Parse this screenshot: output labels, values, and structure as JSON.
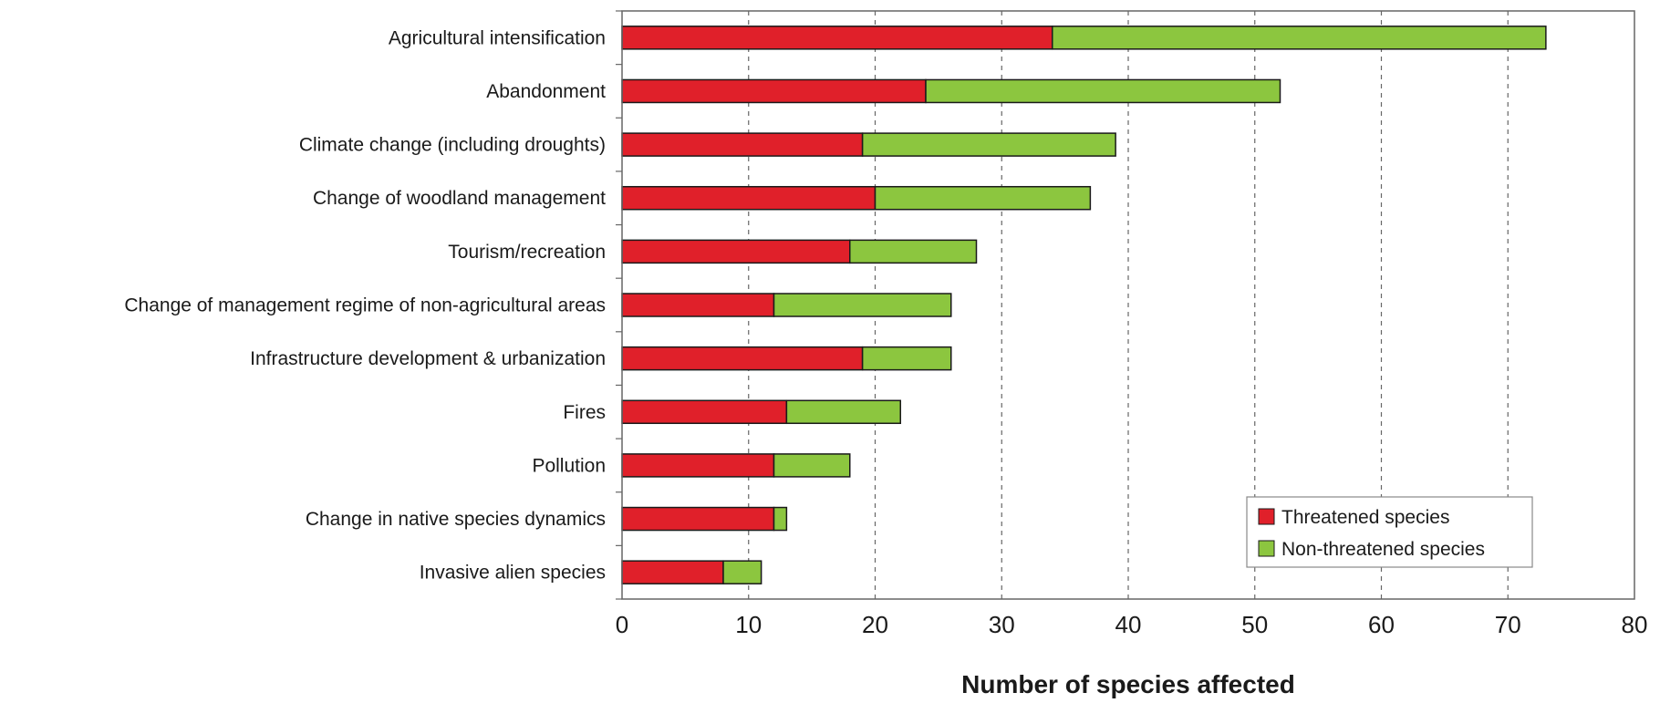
{
  "chart_data": {
    "type": "bar",
    "orientation": "horizontal",
    "stacked": true,
    "categories": [
      "Agricultural intensification",
      "Abandonment",
      "Climate change (including droughts)",
      "Change of woodland management",
      "Tourism/recreation",
      "Change of management regime of non-agricultural areas",
      "Infrastructure development & urbanization",
      "Fires",
      "Pollution",
      "Change in native species dynamics",
      "Invasive alien species"
    ],
    "series": [
      {
        "name": "Threatened species",
        "color": "#e0202a",
        "values": [
          34,
          24,
          19,
          20,
          18,
          12,
          19,
          13,
          12,
          12,
          8
        ]
      },
      {
        "name": "Non-threatened species",
        "color": "#8cc63f",
        "values": [
          39,
          28,
          20,
          17,
          10,
          14,
          7,
          9,
          6,
          1,
          3
        ]
      }
    ],
    "xlabel": "Number of species affected",
    "xlim": [
      0,
      80
    ],
    "xticks": [
      0,
      10,
      20,
      30,
      40,
      50,
      60,
      70,
      80
    ],
    "grid": "vertical dashed",
    "legend": "bottom-right"
  }
}
